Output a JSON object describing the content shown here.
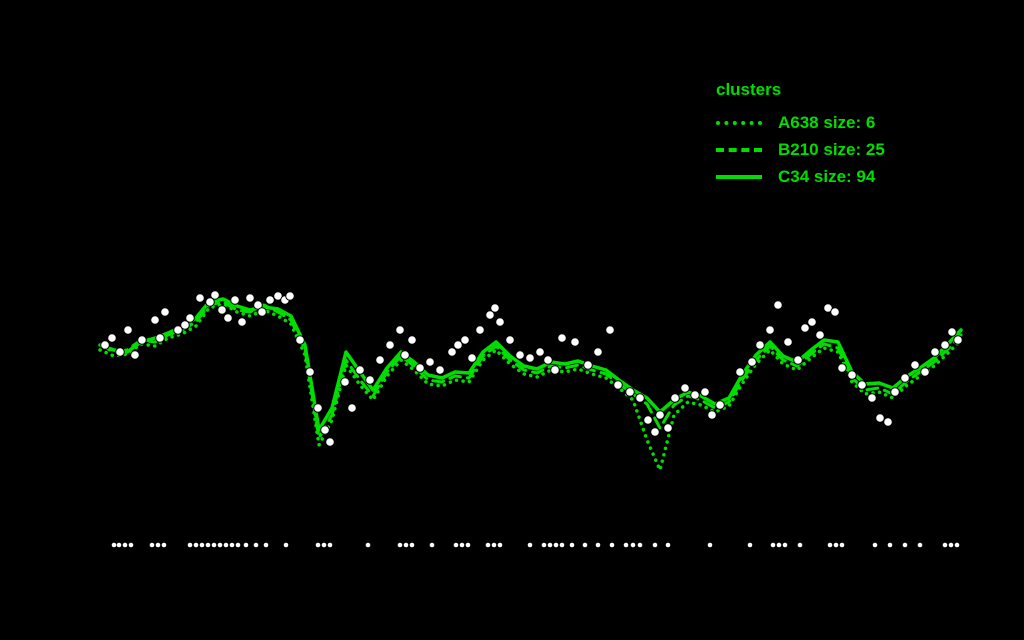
{
  "page": {
    "background": "#000000"
  },
  "legend": {
    "title": "clusters",
    "color": "#00DE00",
    "items": [
      {
        "key": "A638",
        "label": "A638 size: 6",
        "style": "dotted"
      },
      {
        "key": "B210",
        "label": "B210 size: 25",
        "style": "dashed"
      },
      {
        "key": "C34",
        "label": "C34 size: 94",
        "style": "solid"
      }
    ]
  },
  "chart_data": {
    "type": "line",
    "title": "",
    "xlabel": "",
    "ylabel": "",
    "grid": false,
    "legend_position": "top-right",
    "line_color": "#00DE00",
    "xlim": [
      95,
      970
    ],
    "ylim": [
      -60,
      230
    ],
    "x": [
      100,
      114,
      127,
      141,
      155,
      168,
      182,
      196,
      209,
      223,
      237,
      250,
      264,
      278,
      291,
      305,
      319,
      332,
      346,
      360,
      373,
      387,
      401,
      414,
      428,
      442,
      455,
      469,
      483,
      496,
      510,
      524,
      537,
      551,
      565,
      578,
      592,
      606,
      619,
      633,
      647,
      660,
      674,
      688,
      701,
      715,
      729,
      742,
      756,
      770,
      783,
      797,
      811,
      824,
      838,
      852,
      865,
      879,
      893,
      906,
      920,
      934,
      947,
      961
    ],
    "series": [
      {
        "name": "A638",
        "legend_label": "A638 size: 6",
        "size": 6,
        "linestyle": "dotted",
        "values": [
          150,
          144,
          146,
          156,
          154,
          162,
          166,
          174,
          192,
          196,
          188,
          184,
          190,
          184,
          176,
          145,
          55,
          80,
          135,
          115,
          100,
          124,
          140,
          130,
          116,
          114,
          120,
          118,
          140,
          150,
          136,
          126,
          123,
          130,
          128,
          131,
          126,
          122,
          112,
          100,
          60,
          30,
          85,
          98,
          95,
          88,
          94,
          116,
          136,
          150,
          136,
          130,
          142,
          152,
          148,
          118,
          106,
          108,
          102,
          114,
          124,
          134,
          146,
          160
        ]
      },
      {
        "name": "B210",
        "legend_label": "B210 size: 25",
        "size": 25,
        "linestyle": "dashed",
        "values": [
          155,
          148,
          150,
          160,
          158,
          165,
          170,
          178,
          195,
          198,
          190,
          188,
          195,
          188,
          180,
          150,
          62,
          85,
          140,
          120,
          104,
          128,
          144,
          134,
          120,
          118,
          124,
          122,
          144,
          154,
          140,
          130,
          127,
          134,
          132,
          135,
          130,
          126,
          116,
          106,
          96,
          72,
          95,
          104,
          100,
          92,
          98,
          120,
          140,
          154,
          140,
          134,
          146,
          156,
          152,
          122,
          110,
          112,
          106,
          118,
          128,
          138,
          150,
          165
        ]
      },
      {
        "name": "C34",
        "legend_label": "C34 size: 94",
        "size": 94,
        "linestyle": "solid",
        "values": [
          155,
          150,
          148,
          158,
          162,
          167,
          173,
          182,
          198,
          201,
          194,
          190,
          193,
          191,
          184,
          155,
          70,
          92,
          148,
          128,
          110,
          132,
          148,
          138,
          125,
          122,
          128,
          127,
          148,
          158,
          144,
          134,
          131,
          138,
          136,
          139,
          134,
          130,
          120,
          110,
          102,
          88,
          100,
          108,
          104,
          96,
          102,
          125,
          145,
          158,
          144,
          138,
          150,
          160,
          158,
          128,
          116,
          117,
          112,
          123,
          132,
          142,
          155,
          170
        ]
      }
    ],
    "scatter": {
      "marker": "circle",
      "color": "#ffffff",
      "points": [
        [
          105,
          155
        ],
        [
          112,
          162
        ],
        [
          120,
          148
        ],
        [
          128,
          170
        ],
        [
          135,
          145
        ],
        [
          142,
          160
        ],
        [
          155,
          180
        ],
        [
          160,
          162
        ],
        [
          165,
          188
        ],
        [
          178,
          170
        ],
        [
          185,
          175
        ],
        [
          190,
          182
        ],
        [
          200,
          202
        ],
        [
          210,
          198
        ],
        [
          215,
          205
        ],
        [
          222,
          190
        ],
        [
          228,
          182
        ],
        [
          235,
          200
        ],
        [
          242,
          178
        ],
        [
          250,
          202
        ],
        [
          258,
          195
        ],
        [
          262,
          188
        ],
        [
          270,
          200
        ],
        [
          278,
          204
        ],
        [
          285,
          200
        ],
        [
          290,
          204
        ],
        [
          300,
          160
        ],
        [
          310,
          128
        ],
        [
          318,
          92
        ],
        [
          325,
          70
        ],
        [
          330,
          58
        ],
        [
          345,
          118
        ],
        [
          352,
          92
        ],
        [
          360,
          130
        ],
        [
          370,
          120
        ],
        [
          380,
          140
        ],
        [
          390,
          155
        ],
        [
          400,
          170
        ],
        [
          405,
          145
        ],
        [
          412,
          160
        ],
        [
          420,
          132
        ],
        [
          430,
          138
        ],
        [
          440,
          130
        ],
        [
          452,
          148
        ],
        [
          458,
          155
        ],
        [
          465,
          160
        ],
        [
          472,
          142
        ],
        [
          480,
          170
        ],
        [
          490,
          185
        ],
        [
          495,
          192
        ],
        [
          500,
          178
        ],
        [
          510,
          160
        ],
        [
          520,
          145
        ],
        [
          530,
          142
        ],
        [
          540,
          148
        ],
        [
          548,
          140
        ],
        [
          555,
          130
        ],
        [
          562,
          162
        ],
        [
          575,
          158
        ],
        [
          588,
          135
        ],
        [
          598,
          148
        ],
        [
          610,
          170
        ],
        [
          618,
          115
        ],
        [
          630,
          108
        ],
        [
          640,
          102
        ],
        [
          648,
          80
        ],
        [
          655,
          68
        ],
        [
          660,
          85
        ],
        [
          668,
          72
        ],
        [
          675,
          102
        ],
        [
          685,
          112
        ],
        [
          695,
          105
        ],
        [
          705,
          108
        ],
        [
          712,
          85
        ],
        [
          720,
          95
        ],
        [
          740,
          128
        ],
        [
          752,
          138
        ],
        [
          760,
          155
        ],
        [
          770,
          170
        ],
        [
          778,
          195
        ],
        [
          788,
          158
        ],
        [
          798,
          140
        ],
        [
          805,
          172
        ],
        [
          812,
          178
        ],
        [
          820,
          165
        ],
        [
          828,
          192
        ],
        [
          835,
          188
        ],
        [
          842,
          132
        ],
        [
          852,
          125
        ],
        [
          862,
          115
        ],
        [
          872,
          102
        ],
        [
          880,
          82
        ],
        [
          888,
          78
        ],
        [
          895,
          108
        ],
        [
          905,
          122
        ],
        [
          915,
          135
        ],
        [
          925,
          128
        ],
        [
          935,
          148
        ],
        [
          945,
          155
        ],
        [
          952,
          168
        ],
        [
          958,
          160
        ]
      ]
    },
    "rug": {
      "y": -45,
      "x": [
        114,
        119,
        125,
        131,
        152,
        158,
        164,
        190,
        196,
        202,
        208,
        214,
        220,
        226,
        232,
        238,
        246,
        256,
        266,
        286,
        318,
        324,
        330,
        368,
        400,
        406,
        412,
        432,
        456,
        462,
        468,
        488,
        494,
        500,
        530,
        544,
        550,
        556,
        562,
        572,
        585,
        598,
        612,
        626,
        633,
        640,
        655,
        668,
        710,
        750,
        773,
        779,
        785,
        800,
        830,
        836,
        842,
        875,
        890,
        905,
        920,
        945,
        951,
        957
      ]
    }
  }
}
